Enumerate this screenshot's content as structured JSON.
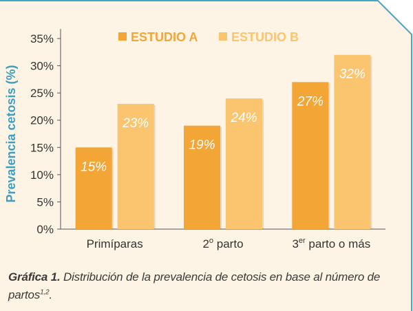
{
  "colors": {
    "background": "#fdf4e6",
    "frame": "#3fa9c5",
    "series_a": "#f3a535",
    "series_b": "#fbc46f",
    "axis_title": "#3f9ec0",
    "text": "#333333",
    "value_label": "#ffffff"
  },
  "chart_data": {
    "type": "bar",
    "title": "",
    "xlabel": "",
    "ylabel": "Prevalencia cetosis (%)",
    "ylim": [
      0,
      35
    ],
    "yticks": [
      0,
      5,
      10,
      15,
      20,
      25,
      30,
      35
    ],
    "ytick_labels": [
      "0%",
      "5%",
      "10%",
      "15%",
      "20%",
      "25%",
      "30%",
      "35%"
    ],
    "categories": [
      {
        "base": "Primíparas",
        "sup": "",
        "rest": ""
      },
      {
        "base": "2",
        "sup": "o",
        "rest": " parto"
      },
      {
        "base": "3",
        "sup": "er",
        "rest": " parto o más"
      }
    ],
    "series": [
      {
        "name": "ESTUDIO A",
        "values": [
          15,
          19,
          27
        ],
        "labels": [
          "15%",
          "19%",
          "27%"
        ]
      },
      {
        "name": "ESTUDIO B",
        "values": [
          23,
          24,
          32
        ],
        "labels": [
          "23%",
          "24%",
          "32%"
        ]
      }
    ],
    "legend": "top",
    "grid": false
  },
  "caption": {
    "bold": "Gráfica 1.",
    "text": " Distribución de la prevalencia de cetosis en base al número de partos",
    "sup": "1,2",
    "end": "."
  }
}
